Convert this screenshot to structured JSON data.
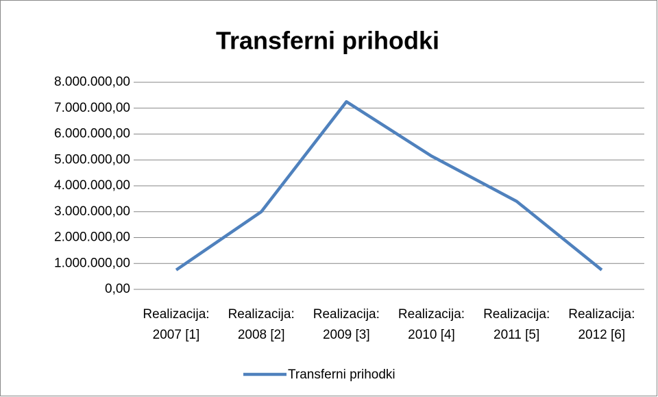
{
  "chart_data": {
    "type": "line",
    "title": "Transferni prihodki",
    "categories": [
      "Realizacija: 2007 [1]",
      "Realizacija: 2008 [2]",
      "Realizacija: 2009 [3]",
      "Realizacija: 2010 [4]",
      "Realizacija: 2011 [5]",
      "Realizacija: 2012 [6]"
    ],
    "series": [
      {
        "name": "Transferni prihodki",
        "color": "#4f81bd",
        "values": [
          750000,
          3000000,
          7250000,
          5150000,
          3400000,
          750000
        ]
      }
    ],
    "ylim": [
      0,
      8000000
    ],
    "yticks": [
      {
        "value": 0,
        "label": "0,00"
      },
      {
        "value": 1000000,
        "label": "1.000.000,00"
      },
      {
        "value": 2000000,
        "label": "2.000.000,00"
      },
      {
        "value": 3000000,
        "label": "3.000.000,00"
      },
      {
        "value": 4000000,
        "label": "4.000.000,00"
      },
      {
        "value": 5000000,
        "label": "5.000.000,00"
      },
      {
        "value": 6000000,
        "label": "6.000.000,00"
      },
      {
        "value": 7000000,
        "label": "7.000.000,00"
      },
      {
        "value": 8000000,
        "label": "8.000.000,00"
      }
    ],
    "grid": true,
    "legend": "bottom"
  }
}
